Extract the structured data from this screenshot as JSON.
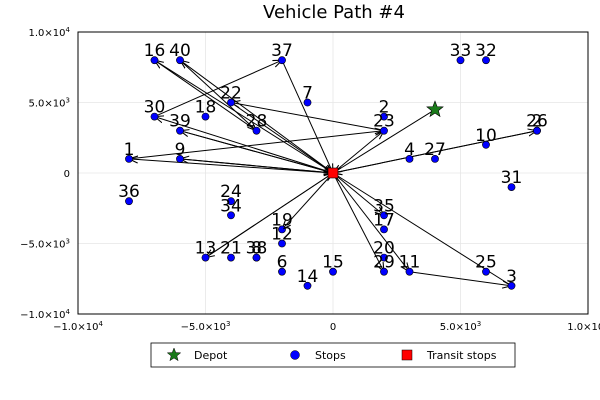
{
  "chart_data": {
    "type": "scatter",
    "title": "Vehicle Path #4",
    "xlim": [
      -10000,
      10000
    ],
    "ylim": [
      -10000,
      10000
    ],
    "x_ticks": [
      {
        "value": -10000,
        "mantissa": "−1.0×10",
        "exp": "4"
      },
      {
        "value": -5000,
        "mantissa": "−5.0×10",
        "exp": "3"
      },
      {
        "value": 0,
        "mantissa": "0",
        "exp": ""
      },
      {
        "value": 5000,
        "mantissa": "5.0×10",
        "exp": "3"
      },
      {
        "value": 10000,
        "mantissa": "1.0×10",
        "exp": "4"
      }
    ],
    "y_ticks": [
      {
        "value": 10000,
        "mantissa": "1.0×10",
        "exp": "4"
      },
      {
        "value": 5000,
        "mantissa": "5.0×10",
        "exp": "3"
      },
      {
        "value": 0,
        "mantissa": "0",
        "exp": ""
      },
      {
        "value": -5000,
        "mantissa": "−5.0×10",
        "exp": "3"
      },
      {
        "value": -10000,
        "mantissa": "−1.0×10",
        "exp": "4"
      }
    ],
    "grid": true,
    "legend": [
      {
        "label": "Depot",
        "marker": "star",
        "color": "#1a7a1a"
      },
      {
        "label": "Stops",
        "marker": "circle",
        "color": "#0000ff"
      },
      {
        "label": "Transit stops",
        "marker": "square",
        "color": "#ff0000"
      }
    ],
    "legend_position": "bottom",
    "depot": {
      "x": 4000,
      "y": 4500
    },
    "transit_stops": [
      {
        "x": 0,
        "y": 0
      }
    ],
    "stops": [
      {
        "id": "1",
        "x": -8000,
        "y": 1000
      },
      {
        "id": "2",
        "x": 2000,
        "y": 4000
      },
      {
        "id": "3",
        "x": 7000,
        "y": -8000
      },
      {
        "id": "4",
        "x": 3000,
        "y": 1000
      },
      {
        "id": "6",
        "x": -2000,
        "y": -7000
      },
      {
        "id": "7",
        "x": -1000,
        "y": 5000
      },
      {
        "id": "8",
        "x": -3000,
        "y": -6000
      },
      {
        "id": "9",
        "x": -6000,
        "y": 1000
      },
      {
        "id": "10",
        "x": 6000,
        "y": 2000
      },
      {
        "id": "11",
        "x": 3000,
        "y": -7000
      },
      {
        "id": "12",
        "x": -2000,
        "y": -5000
      },
      {
        "id": "13",
        "x": -5000,
        "y": -6000
      },
      {
        "id": "14",
        "x": -1000,
        "y": -8000
      },
      {
        "id": "15",
        "x": 0,
        "y": -7000
      },
      {
        "id": "16",
        "x": -7000,
        "y": 8000
      },
      {
        "id": "17",
        "x": 2000,
        "y": -4000
      },
      {
        "id": "18",
        "x": -5000,
        "y": 4000
      },
      {
        "id": "19",
        "x": -2000,
        "y": -4000
      },
      {
        "id": "20",
        "x": 2000,
        "y": -6000
      },
      {
        "id": "21",
        "x": -4000,
        "y": -6000
      },
      {
        "id": "22",
        "x": -4000,
        "y": 5000
      },
      {
        "id": "23",
        "x": 2000,
        "y": 3000
      },
      {
        "id": "24",
        "x": -4000,
        "y": -2000
      },
      {
        "id": "25",
        "x": 6000,
        "y": -7000
      },
      {
        "id": "26",
        "x": 8000,
        "y": 3000
      },
      {
        "id": "27",
        "x": 4000,
        "y": 1000
      },
      {
        "id": "28",
        "x": -3000,
        "y": 3000
      },
      {
        "id": "29",
        "x": 2000,
        "y": -7000
      },
      {
        "id": "30",
        "x": -7000,
        "y": 4000
      },
      {
        "id": "31",
        "x": 7000,
        "y": -1000
      },
      {
        "id": "32",
        "x": 6000,
        "y": 8000
      },
      {
        "id": "33",
        "x": 5000,
        "y": 8000
      },
      {
        "id": "34",
        "x": -4000,
        "y": -3000
      },
      {
        "id": "35",
        "x": 2000,
        "y": -3000
      },
      {
        "id": "36",
        "x": -8000,
        "y": -2000
      },
      {
        "id": "37",
        "x": -2000,
        "y": 8000
      },
      {
        "id": "38",
        "x": -3000,
        "y": -6000
      },
      {
        "id": "39",
        "x": -6000,
        "y": 3000
      },
      {
        "id": "40",
        "x": -6000,
        "y": 8000
      },
      {
        "id": "2",
        "x": 8000,
        "y": 3000
      }
    ],
    "path_segments": [
      {
        "from": [
          4000,
          4500
        ],
        "to": [
          0,
          0
        ]
      },
      {
        "from": [
          0,
          0
        ],
        "to": [
          -8000,
          1000
        ]
      },
      {
        "from": [
          -8000,
          1000
        ],
        "to": [
          2000,
          3000
        ]
      },
      {
        "from": [
          2000,
          3000
        ],
        "to": [
          -4000,
          5000
        ]
      },
      {
        "from": [
          -4000,
          5000
        ],
        "to": [
          0,
          0
        ]
      },
      {
        "from": [
          0,
          0
        ],
        "to": [
          -6000,
          1000
        ]
      },
      {
        "from": [
          -6000,
          1000
        ],
        "to": [
          0,
          0
        ]
      },
      {
        "from": [
          0,
          0
        ],
        "to": [
          -7000,
          4000
        ]
      },
      {
        "from": [
          -7000,
          4000
        ],
        "to": [
          -2000,
          8000
        ]
      },
      {
        "from": [
          -2000,
          8000
        ],
        "to": [
          0,
          0
        ]
      },
      {
        "from": [
          0,
          0
        ],
        "to": [
          -6000,
          8000
        ]
      },
      {
        "from": [
          -6000,
          8000
        ],
        "to": [
          -3000,
          3000
        ]
      },
      {
        "from": [
          -3000,
          3000
        ],
        "to": [
          -7000,
          8000
        ]
      },
      {
        "from": [
          -7000,
          8000
        ],
        "to": [
          0,
          0
        ]
      },
      {
        "from": [
          0,
          0
        ],
        "to": [
          -6000,
          3000
        ]
      },
      {
        "from": [
          -6000,
          3000
        ],
        "to": [
          0,
          0
        ]
      },
      {
        "from": [
          0,
          0
        ],
        "to": [
          2000,
          3000
        ]
      },
      {
        "from": [
          0,
          0
        ],
        "to": [
          8000,
          3000
        ]
      },
      {
        "from": [
          8000,
          3000
        ],
        "to": [
          0,
          0
        ]
      },
      {
        "from": [
          0,
          0
        ],
        "to": [
          -5000,
          -6000
        ]
      },
      {
        "from": [
          -5000,
          -6000
        ],
        "to": [
          0,
          0
        ]
      },
      {
        "from": [
          0,
          0
        ],
        "to": [
          -2000,
          -4000
        ]
      },
      {
        "from": [
          0,
          0
        ],
        "to": [
          2000,
          -3000
        ]
      },
      {
        "from": [
          0,
          0
        ],
        "to": [
          3000,
          -7000
        ]
      },
      {
        "from": [
          3000,
          -7000
        ],
        "to": [
          7000,
          -8000
        ]
      },
      {
        "from": [
          7000,
          -8000
        ],
        "to": [
          0,
          0
        ]
      },
      {
        "from": [
          0,
          0
        ],
        "to": [
          2000,
          -7000
        ]
      }
    ]
  }
}
